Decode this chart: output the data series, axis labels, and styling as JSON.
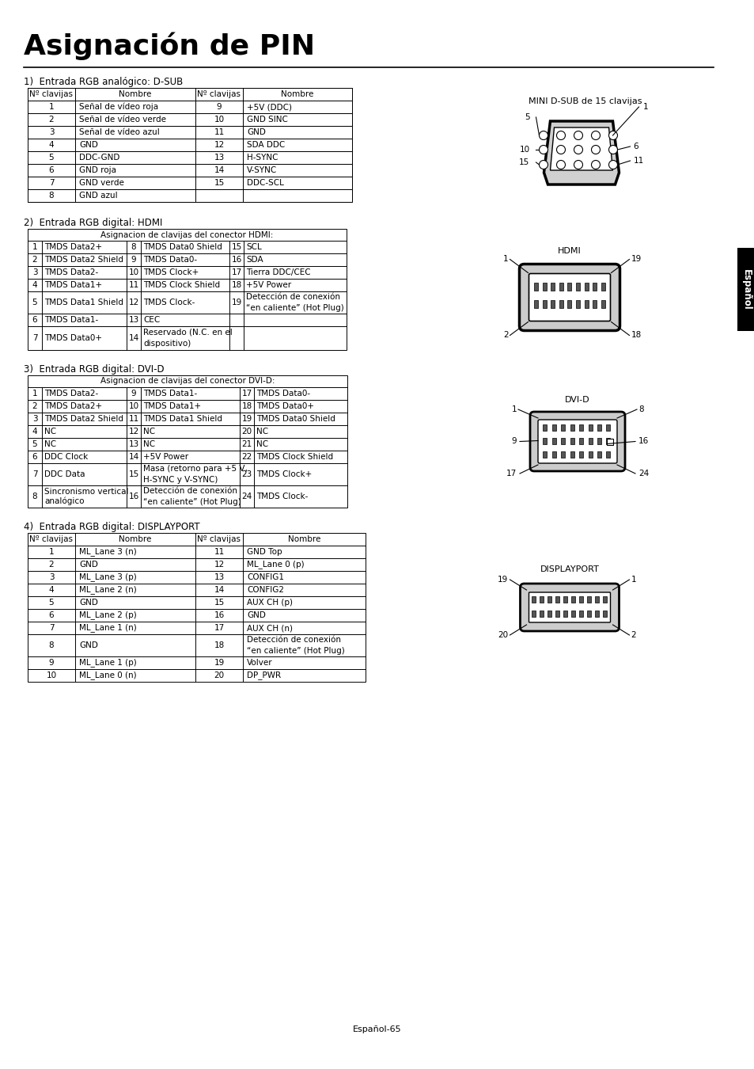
{
  "title": "Asignación de PIN",
  "bg_color": "#ffffff",
  "section1_label": "1)  Entrada RGB analógico: D-SUB",
  "section2_label": "2)  Entrada RGB digital: HDMI",
  "section3_label": "3)  Entrada RGB digital: DVI-D",
  "section4_label": "4)  Entrada RGB digital: DISPLAYPORT",
  "footer": "Español-65",
  "tab1_headers": [
    "Nº clavijas",
    "Nombre",
    "Nº clavijas",
    "Nombre"
  ],
  "tab1_rows": [
    [
      "1",
      "Señal de vídeo roja",
      "9",
      "+5V (DDC)"
    ],
    [
      "2",
      "Señal de vídeo verde",
      "10",
      "GND SINC"
    ],
    [
      "3",
      "Señal de vídeo azul",
      "11",
      "GND"
    ],
    [
      "4",
      "GND",
      "12",
      "SDA DDC"
    ],
    [
      "5",
      "DDC-GND",
      "13",
      "H-SYNC"
    ],
    [
      "6",
      "GND roja",
      "14",
      "V-SYNC"
    ],
    [
      "7",
      "GND verde",
      "15",
      "DDC-SCL"
    ],
    [
      "8",
      "GND azul",
      "",
      ""
    ]
  ],
  "tab2_title": "Asignacion de clavijas del conector HDMI:",
  "tab2_rows": [
    [
      "1",
      "TMDS Data2+",
      "8",
      "TMDS Data0 Shield",
      "15",
      "SCL"
    ],
    [
      "2",
      "TMDS Data2 Shield",
      "9",
      "TMDS Data0-",
      "16",
      "SDA"
    ],
    [
      "3",
      "TMDS Data2-",
      "10",
      "TMDS Clock+",
      "17",
      "Tierra DDC/CEC"
    ],
    [
      "4",
      "TMDS Data1+",
      "11",
      "TMDS Clock Shield",
      "18",
      "+5V Power"
    ],
    [
      "5",
      "TMDS Data1 Shield",
      "12",
      "TMDS Clock-",
      "19",
      "Detección de conexión\n“en caliente” (Hot Plug)"
    ],
    [
      "6",
      "TMDS Data1-",
      "13",
      "CEC",
      "",
      ""
    ],
    [
      "7",
      "TMDS Data0+",
      "14",
      "Reservado (N.C. en el\ndispositivo)",
      "",
      ""
    ]
  ],
  "tab3_title": "Asignacion de clavijas del conector DVI-D:",
  "tab3_rows": [
    [
      "1",
      "TMDS Data2-",
      "9",
      "TMDS Data1-",
      "17",
      "TMDS Data0-"
    ],
    [
      "2",
      "TMDS Data2+",
      "10",
      "TMDS Data1+",
      "18",
      "TMDS Data0+"
    ],
    [
      "3",
      "TMDS Data2 Shield",
      "11",
      "TMDS Data1 Shield",
      "19",
      "TMDS Data0 Shield"
    ],
    [
      "4",
      "NC",
      "12",
      "NC",
      "20",
      "NC"
    ],
    [
      "5",
      "NC",
      "13",
      "NC",
      "21",
      "NC"
    ],
    [
      "6",
      "DDC Clock",
      "14",
      "+5V Power",
      "22",
      "TMDS Clock Shield"
    ],
    [
      "7",
      "DDC Data",
      "15",
      "Masa (retorno para +5 V,\nH-SYNC y V-SYNC)",
      "23",
      "TMDS Clock+"
    ],
    [
      "8",
      "Sincronismo vertical\nanalógico",
      "16",
      "Detección de conexión\n“en caliente” (Hot Plug)",
      "24",
      "TMDS Clock-"
    ]
  ],
  "tab4_headers": [
    "Nº clavijas",
    "Nombre",
    "Nº clavijas",
    "Nombre"
  ],
  "tab4_rows": [
    [
      "1",
      "ML_Lane 3 (n)",
      "11",
      "GND Top"
    ],
    [
      "2",
      "GND",
      "12",
      "ML_Lane 0 (p)"
    ],
    [
      "3",
      "ML_Lane 3 (p)",
      "13",
      "CONFIG1"
    ],
    [
      "4",
      "ML_Lane 2 (n)",
      "14",
      "CONFIG2"
    ],
    [
      "5",
      "GND",
      "15",
      "AUX CH (p)"
    ],
    [
      "6",
      "ML_Lane 2 (p)",
      "16",
      "GND"
    ],
    [
      "7",
      "ML_Lane 1 (n)",
      "17",
      "AUX CH (n)"
    ],
    [
      "8",
      "GND",
      "18",
      "Detección de conexión\n“en caliente” (Hot Plug)"
    ],
    [
      "9",
      "ML_Lane 1 (p)",
      "19",
      "Volver"
    ],
    [
      "10",
      "ML_Lane 0 (n)",
      "20",
      "DP_PWR"
    ]
  ],
  "sidebar_label": "Español"
}
